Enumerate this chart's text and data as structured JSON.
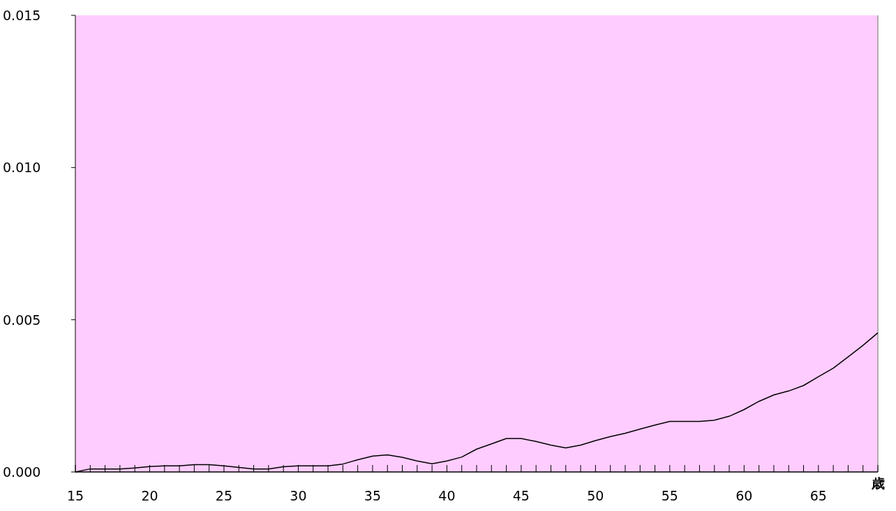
{
  "chart_data": {
    "type": "line",
    "xlabel": "歳",
    "x": [
      15,
      16,
      17,
      18,
      19,
      20,
      21,
      22,
      23,
      24,
      25,
      26,
      27,
      28,
      29,
      30,
      31,
      32,
      33,
      34,
      35,
      36,
      37,
      38,
      39,
      40,
      41,
      42,
      43,
      44,
      45,
      46,
      47,
      48,
      49,
      50,
      51,
      52,
      53,
      54,
      55,
      56,
      57,
      58,
      59,
      60,
      61,
      62,
      63,
      64,
      65,
      66,
      67,
      68,
      69
    ],
    "series": [
      {
        "color": "#000000",
        "values": [
          0,
          0.0001,
          0.0001,
          0.0001,
          0.00013,
          0.00018,
          0.0002,
          0.0002,
          0.00024,
          0.00024,
          0.0002,
          0.00015,
          0.0001,
          0.0001,
          0.00017,
          0.0002,
          0.0002,
          0.0002,
          0.00026,
          0.0004,
          0.00052,
          0.00056,
          0.00048,
          0.00036,
          0.00027,
          0.00036,
          0.00049,
          0.00075,
          0.00092,
          0.0011,
          0.0011,
          0.001,
          0.00088,
          0.00079,
          0.00088,
          0.00103,
          0.00116,
          0.00127,
          0.00141,
          0.00154,
          0.00166,
          0.00166,
          0.00166,
          0.0017,
          0.00183,
          0.00205,
          0.00232,
          0.00253,
          0.00266,
          0.00284,
          0.00313,
          0.00341,
          0.00378,
          0.00416,
          0.00457
        ]
      }
    ],
    "xlim": [
      15,
      69
    ],
    "xticks": [
      15,
      {
        "value": 16,
        "label": null
      },
      {
        "value": 17,
        "label": null
      },
      {
        "value": 18,
        "label": null
      },
      {
        "value": 19,
        "label": null
      },
      20,
      {
        "value": 21,
        "label": null
      },
      {
        "value": 22,
        "label": null
      },
      {
        "value": 23,
        "label": null
      },
      {
        "value": 24,
        "label": null
      },
      25,
      {
        "value": 26,
        "label": null
      },
      {
        "value": 27,
        "label": null
      },
      {
        "value": 28,
        "label": null
      },
      {
        "value": 29,
        "label": null
      },
      30,
      {
        "value": 31,
        "label": null
      },
      {
        "value": 32,
        "label": null
      },
      {
        "value": 33,
        "label": null
      },
      {
        "value": 34,
        "label": null
      },
      35,
      {
        "value": 36,
        "label": null
      },
      {
        "value": 37,
        "label": null
      },
      {
        "value": 38,
        "label": null
      },
      {
        "value": 39,
        "label": null
      },
      40,
      {
        "value": 41,
        "label": null
      },
      {
        "value": 42,
        "label": null
      },
      {
        "value": 43,
        "label": null
      },
      {
        "value": 44,
        "label": null
      },
      45,
      {
        "value": 46,
        "label": null
      },
      {
        "value": 47,
        "label": null
      },
      {
        "value": 48,
        "label": null
      },
      {
        "value": 49,
        "label": null
      },
      50,
      {
        "value": 51,
        "label": null
      },
      {
        "value": 52,
        "label": null
      },
      {
        "value": 53,
        "label": null
      },
      {
        "value": 54,
        "label": null
      },
      55,
      {
        "value": 56,
        "label": null
      },
      {
        "value": 57,
        "label": null
      },
      {
        "value": 58,
        "label": null
      },
      {
        "value": 59,
        "label": null
      },
      60,
      {
        "value": 61,
        "label": null
      },
      {
        "value": 62,
        "label": null
      },
      {
        "value": 63,
        "label": null
      },
      {
        "value": 64,
        "label": null
      },
      65,
      {
        "value": 66,
        "label": null
      },
      {
        "value": 67,
        "label": null
      },
      {
        "value": 68,
        "label": null
      },
      {
        "value": 69,
        "label": null
      }
    ],
    "ylim": [
      0,
      0.015
    ],
    "yticks": [
      {
        "value": 0,
        "label": "0.000"
      },
      {
        "value": 0.005,
        "label": "0.005"
      },
      {
        "value": 0.01,
        "label": "0.010"
      },
      {
        "value": 0.015,
        "label": "0.015"
      }
    ],
    "grid": false,
    "marker": "none",
    "line_style": "solid"
  }
}
